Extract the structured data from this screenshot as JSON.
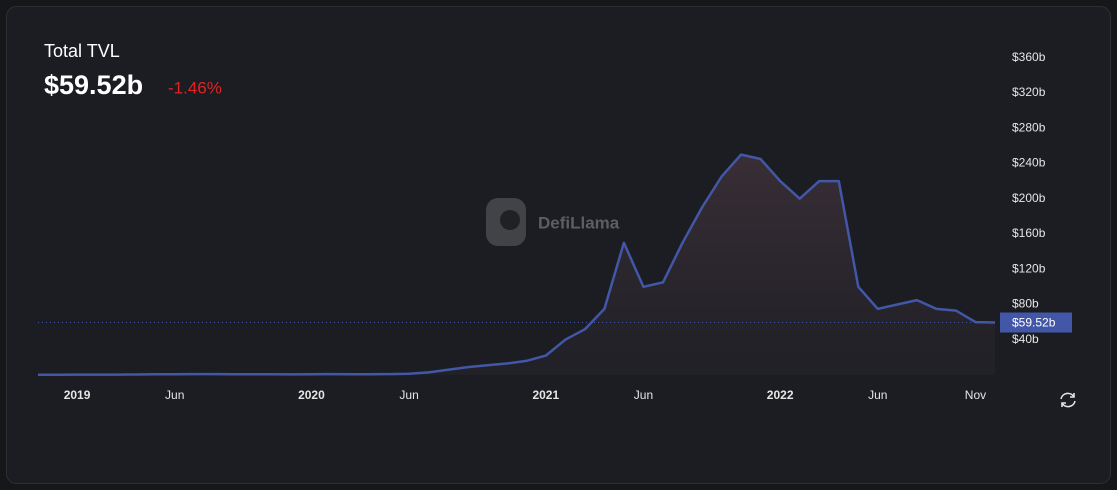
{
  "chart_data": {
    "type": "area",
    "title": "Total TVL",
    "value_label": "$59.52b",
    "change": "-1.46%",
    "watermark": "DefiLlama",
    "color": "#4257a7",
    "x": [
      "2018-11",
      "2018-12",
      "2019-01",
      "2019-02",
      "2019-03",
      "2019-04",
      "2019-05",
      "2019-06",
      "2019-07",
      "2019-08",
      "2019-09",
      "2019-10",
      "2019-11",
      "2019-12",
      "2020-01",
      "2020-02",
      "2020-03",
      "2020-04",
      "2020-05",
      "2020-06",
      "2020-07",
      "2020-08",
      "2020-09",
      "2020-10",
      "2020-11",
      "2020-12",
      "2021-01",
      "2021-02",
      "2021-03",
      "2021-04",
      "2021-05",
      "2021-06",
      "2021-07",
      "2021-08",
      "2021-09",
      "2021-10",
      "2021-11",
      "2021-12",
      "2022-01",
      "2022-02",
      "2022-03",
      "2022-04",
      "2022-05",
      "2022-06",
      "2022-07",
      "2022-08",
      "2022-09",
      "2022-10",
      "2022-11",
      "2022-12"
    ],
    "values": [
      0.3,
      0.3,
      0.4,
      0.4,
      0.5,
      0.6,
      0.8,
      0.9,
      1,
      1,
      0.9,
      0.8,
      0.8,
      0.7,
      0.8,
      1,
      0.8,
      0.9,
      1,
      1.5,
      3,
      6,
      9,
      11,
      13,
      16,
      22,
      40,
      52,
      75,
      150,
      100,
      105,
      150,
      190,
      225,
      250,
      245,
      220,
      200,
      220,
      220,
      100,
      75,
      80,
      85,
      75,
      73,
      60,
      59.52
    ],
    "xlim": [
      "2018-11",
      "2022-12"
    ],
    "xticks": [
      {
        "value": "2019-01",
        "label": "2019"
      },
      {
        "value": "2019-06",
        "label": "Jun"
      },
      {
        "value": "2020-01",
        "label": "2020"
      },
      {
        "value": "2020-06",
        "label": "Jun"
      },
      {
        "value": "2021-01",
        "label": "2021"
      },
      {
        "value": "2021-06",
        "label": "Jun"
      },
      {
        "value": "2022-01",
        "label": "2022"
      },
      {
        "value": "2022-06",
        "label": "Jun"
      },
      {
        "value": "2022-11",
        "label": "Nov"
      }
    ],
    "ylim": [
      0,
      380
    ],
    "yticks": [
      {
        "value": 40,
        "label": "$40b"
      },
      {
        "value": 80,
        "label": "$80b"
      },
      {
        "value": 120,
        "label": "$120b"
      },
      {
        "value": 160,
        "label": "$160b"
      },
      {
        "value": 200,
        "label": "$200b"
      },
      {
        "value": 240,
        "label": "$240b"
      },
      {
        "value": 280,
        "label": "$280b"
      },
      {
        "value": 320,
        "label": "$320b"
      },
      {
        "value": 360,
        "label": "$360b"
      }
    ]
  }
}
